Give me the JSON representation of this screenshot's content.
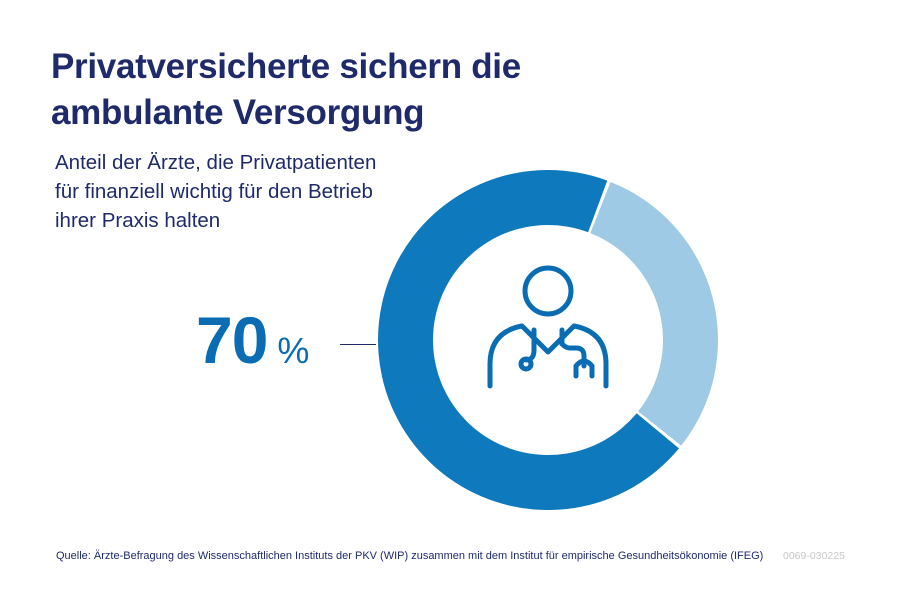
{
  "title": "Privatversicherte sichern die ambulante Versorgung",
  "subtitle": "Anteil der Ärzte, die Privatpatienten für finanziell wichtig für den Betrieb ihrer Praxis halten",
  "highlight": {
    "number": "70",
    "unit": "%"
  },
  "icon": "doctor-stethoscope-icon",
  "colors": {
    "title": "#1f2a6b",
    "accent": "#0a6db3",
    "primary_segment": "#0f79bd",
    "secondary_segment": "#9ecae6",
    "icon": "#0a6db3"
  },
  "chart_data": {
    "type": "pie",
    "donut": true,
    "values": [
      70,
      30
    ],
    "colors": [
      "#0f79bd",
      "#9ecae6"
    ]
  },
  "footer": {
    "source": "Quelle: Ärzte-Befragung des Wissenschaftlichen Instituts der PKV (WIP) zusammen mit dem Institut für empirische Gesundheitsökonomie (IFEG)",
    "code": "0069-030225"
  }
}
